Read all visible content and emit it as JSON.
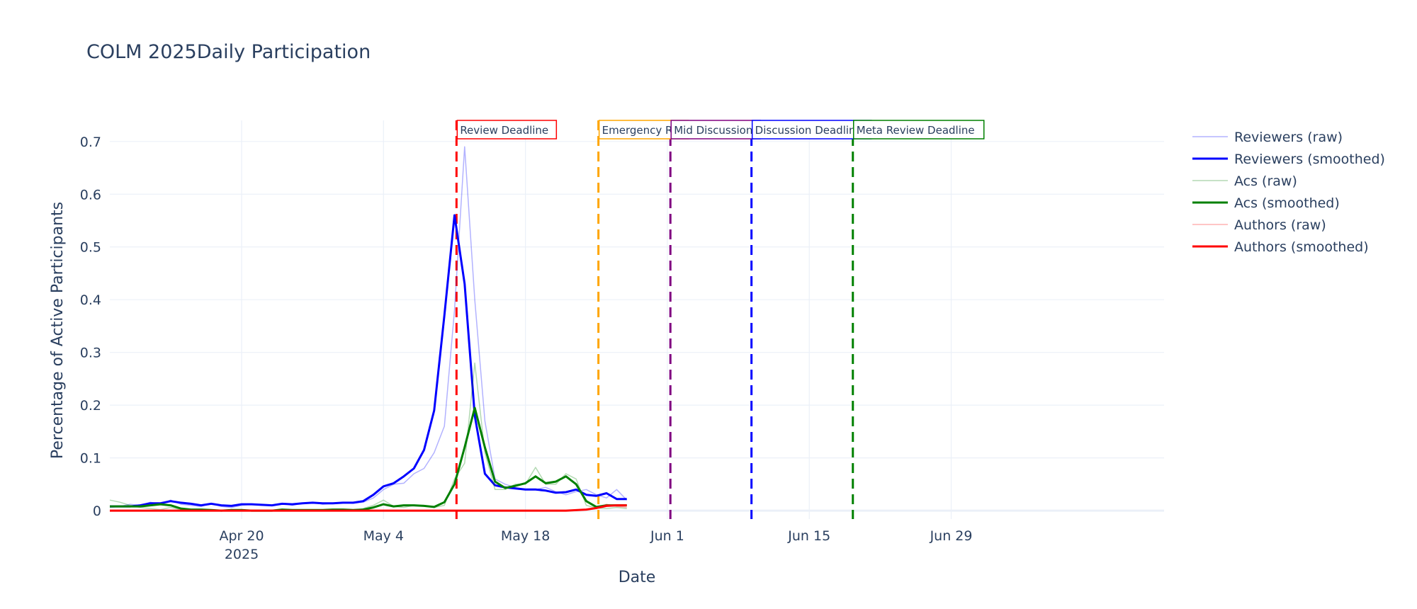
{
  "chart_data": {
    "type": "line",
    "title": "COLM 2025Daily Participation",
    "xlabel": "Date",
    "ylabel": "Percentage of Active Participants",
    "x_range_days": [
      0,
      104
    ],
    "x_origin": "2025-04-07",
    "ylim": [
      -0.016,
      0.74
    ],
    "x_ticks": [
      {
        "day": 13,
        "label": "Apr 20",
        "sublabel": "2025"
      },
      {
        "day": 27,
        "label": "May 4",
        "sublabel": ""
      },
      {
        "day": 41,
        "label": "May 18",
        "sublabel": ""
      },
      {
        "day": 55,
        "label": "Jun 1",
        "sublabel": ""
      },
      {
        "day": 69,
        "label": "Jun 15",
        "sublabel": ""
      },
      {
        "day": 83,
        "label": "Jun 29",
        "sublabel": ""
      }
    ],
    "y_ticks": [
      {
        "value": 0,
        "label": "0"
      },
      {
        "value": 0.1,
        "label": "0.1"
      },
      {
        "value": 0.2,
        "label": "0.2"
      },
      {
        "value": 0.3,
        "label": "0.3"
      },
      {
        "value": 0.4,
        "label": "0.4"
      },
      {
        "value": 0.5,
        "label": "0.5"
      },
      {
        "value": 0.6,
        "label": "0.6"
      },
      {
        "value": 0.7,
        "label": "0.7"
      }
    ],
    "series": [
      {
        "name": "Reviewers (raw)",
        "color": "#0000ff",
        "opacity": 0.3,
        "width": 1.5,
        "x": [
          0,
          1,
          2,
          3,
          4,
          5,
          6,
          7,
          8,
          9,
          10,
          11,
          12,
          13,
          14,
          15,
          16,
          17,
          18,
          19,
          20,
          21,
          22,
          23,
          24,
          25,
          26,
          27,
          28,
          29,
          30,
          31,
          32,
          33,
          34,
          35,
          36,
          37,
          38,
          39,
          40,
          41,
          42,
          43,
          44,
          45,
          46,
          47,
          48,
          49,
          50,
          51
        ],
        "y": [
          0.006,
          0.008,
          0.012,
          0.01,
          0.016,
          0.012,
          0.02,
          0.012,
          0.01,
          0.008,
          0.014,
          0.008,
          0.006,
          0.01,
          0.012,
          0.01,
          0.01,
          0.014,
          0.01,
          0.014,
          0.016,
          0.012,
          0.014,
          0.016,
          0.014,
          0.016,
          0.024,
          0.04,
          0.05,
          0.052,
          0.07,
          0.08,
          0.11,
          0.16,
          0.38,
          0.69,
          0.4,
          0.17,
          0.06,
          0.05,
          0.044,
          0.04,
          0.04,
          0.044,
          0.036,
          0.03,
          0.036,
          0.04,
          0.03,
          0.024,
          0.04,
          0.02
        ]
      },
      {
        "name": "Reviewers (smoothed)",
        "color": "#0000ff",
        "opacity": 1,
        "width": 3,
        "x": [
          0,
          1,
          2,
          3,
          4,
          5,
          6,
          7,
          8,
          9,
          10,
          11,
          12,
          13,
          14,
          15,
          16,
          17,
          18,
          19,
          20,
          21,
          22,
          23,
          24,
          25,
          26,
          27,
          28,
          29,
          30,
          31,
          32,
          33,
          34,
          35,
          36,
          37,
          38,
          39,
          40,
          41,
          42,
          43,
          44,
          45,
          46,
          47,
          48,
          49,
          50,
          51
        ],
        "y": [
          0.008,
          0.008,
          0.008,
          0.01,
          0.014,
          0.014,
          0.018,
          0.015,
          0.013,
          0.01,
          0.013,
          0.01,
          0.009,
          0.012,
          0.012,
          0.011,
          0.01,
          0.013,
          0.012,
          0.014,
          0.015,
          0.014,
          0.014,
          0.015,
          0.015,
          0.018,
          0.03,
          0.046,
          0.052,
          0.065,
          0.08,
          0.115,
          0.19,
          0.37,
          0.56,
          0.43,
          0.18,
          0.07,
          0.048,
          0.044,
          0.042,
          0.04,
          0.04,
          0.038,
          0.034,
          0.035,
          0.04,
          0.03,
          0.028,
          0.033,
          0.022,
          0.022
        ]
      },
      {
        "name": "Acs (raw)",
        "color": "#008000",
        "opacity": 0.3,
        "width": 1.5,
        "x": [
          0,
          1,
          2,
          3,
          4,
          5,
          6,
          7,
          8,
          9,
          10,
          11,
          12,
          13,
          14,
          15,
          16,
          17,
          18,
          19,
          20,
          21,
          22,
          23,
          24,
          25,
          26,
          27,
          28,
          29,
          30,
          31,
          32,
          33,
          34,
          35,
          36,
          37,
          38,
          39,
          40,
          41,
          42,
          43,
          44,
          45,
          46,
          47,
          48,
          49,
          50,
          51
        ],
        "y": [
          0.02,
          0.016,
          0.01,
          0.006,
          0.004,
          0.002,
          0.006,
          0.002,
          0.002,
          0,
          0,
          0,
          0.002,
          0,
          0,
          0,
          0,
          0.002,
          0,
          0,
          0,
          0,
          0.002,
          0,
          0,
          0.004,
          0.01,
          0.02,
          0.008,
          0.006,
          0.01,
          0.01,
          0.006,
          0.01,
          0.06,
          0.09,
          0.28,
          0.11,
          0.04,
          0.04,
          0.05,
          0.05,
          0.082,
          0.05,
          0.05,
          0.07,
          0.06,
          0.01,
          0.005,
          0.004,
          0.006,
          0.004
        ]
      },
      {
        "name": "Acs (smoothed)",
        "color": "#008000",
        "opacity": 1,
        "width": 3,
        "x": [
          0,
          1,
          2,
          3,
          4,
          5,
          6,
          7,
          8,
          9,
          10,
          11,
          12,
          13,
          14,
          15,
          16,
          17,
          18,
          19,
          20,
          21,
          22,
          23,
          24,
          25,
          26,
          27,
          28,
          29,
          30,
          31,
          32,
          33,
          34,
          35,
          36,
          37,
          38,
          39,
          40,
          41,
          42,
          43,
          44,
          45,
          46,
          47,
          48,
          49,
          50,
          51
        ],
        "y": [
          0.008,
          0.008,
          0.008,
          0.008,
          0.01,
          0.012,
          0.01,
          0.004,
          0.002,
          0.002,
          0.001,
          0,
          0.001,
          0.001,
          0,
          0,
          0,
          0.002,
          0.001,
          0.001,
          0.001,
          0.001,
          0.002,
          0.002,
          0.001,
          0.002,
          0.006,
          0.012,
          0.008,
          0.01,
          0.01,
          0.009,
          0.007,
          0.016,
          0.05,
          0.12,
          0.195,
          0.12,
          0.055,
          0.043,
          0.047,
          0.052,
          0.065,
          0.052,
          0.055,
          0.065,
          0.05,
          0.018,
          0.007,
          0.01,
          0.01,
          0.01
        ]
      },
      {
        "name": "Authors (raw)",
        "color": "#ff0000",
        "opacity": 0.3,
        "width": 1.5,
        "x": [
          0,
          5,
          10,
          15,
          20,
          25,
          30,
          35,
          40,
          45,
          47,
          48,
          49,
          50,
          51
        ],
        "y": [
          0,
          0,
          0,
          0,
          0,
          0,
          0,
          0,
          0,
          0,
          0.002,
          0.004,
          0.012,
          0.008,
          0.006
        ]
      },
      {
        "name": "Authors (smoothed)",
        "color": "#ff0000",
        "opacity": 1,
        "width": 3,
        "x": [
          0,
          5,
          10,
          15,
          20,
          25,
          30,
          35,
          40,
          45,
          47,
          48,
          49,
          50,
          51
        ],
        "y": [
          0,
          0,
          0,
          0,
          0,
          0,
          0,
          0,
          0,
          0,
          0.002,
          0.005,
          0.009,
          0.01,
          0.01
        ]
      }
    ],
    "annotations": [
      {
        "day": 34.2,
        "label": "Review Deadline",
        "color": "#ff0000",
        "text_width": 140
      },
      {
        "day": 48.2,
        "label": "Emergency Rev",
        "color": "#ffa500",
        "text_width": 126
      },
      {
        "day": 55.3,
        "label": "Mid Discussion",
        "color": "#800080",
        "text_width": 126
      },
      {
        "day": 63.3,
        "label": "Discussion Deadline",
        "color": "#0000ff",
        "text_width": 168
      },
      {
        "day": 73.3,
        "label": "Meta Review Deadline",
        "color": "#008000",
        "text_width": 184
      }
    ]
  }
}
